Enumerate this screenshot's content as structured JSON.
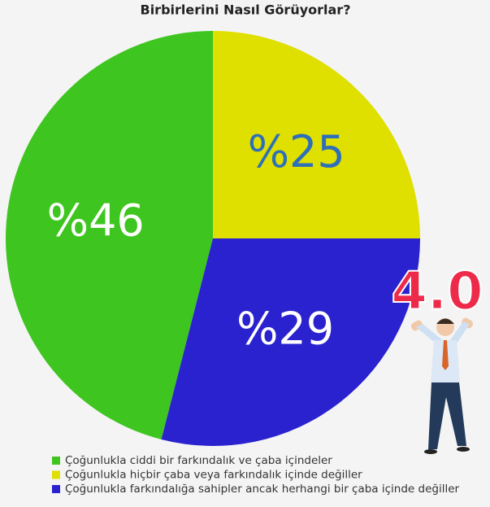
{
  "chart_data": {
    "type": "pie",
    "title": "Birbirlerini Nasıl Görüyorlar?",
    "categories": [
      "Çoğunlukla ciddi bir farkındalık ve çaba içindeler",
      "Çoğunlukla hiçbir çaba veya farkındalık içinde değiller",
      "Çoğunlukla farkındalığa sahipler ancak herhangi bir çaba içinde değiller"
    ],
    "values": [
      46,
      25,
      29
    ],
    "value_labels": [
      "%46",
      "%25",
      "%29"
    ],
    "colors": [
      "#3ec51f",
      "#dfdf00",
      "#2b22cf"
    ],
    "label_colors": [
      "#ffffff",
      "#2d6fb8",
      "#ffffff"
    ],
    "annotation": "4.0"
  }
}
